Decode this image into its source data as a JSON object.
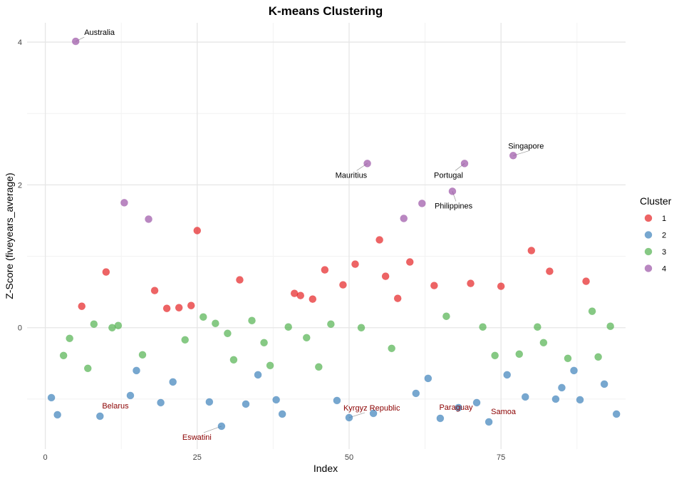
{
  "chart_data": {
    "type": "scatter",
    "title": "K-means Clustering",
    "xlabel": "Index",
    "ylabel": "Z-Score (fiveyears_average)",
    "xlim": [
      -3,
      95.5
    ],
    "ylim": [
      -1.7,
      4.27
    ],
    "x_ticks": [
      0,
      25,
      50,
      75
    ],
    "y_ticks": [
      0,
      2,
      4
    ],
    "grid": true,
    "legend_title": "Cluster",
    "legend_position": "right",
    "colors": {
      "1": "#E41A1C",
      "2": "#377EB8",
      "3": "#4DAF4A",
      "4": "#984EA3"
    },
    "series": [
      {
        "name": "1",
        "points": [
          [
            6,
            0.3
          ],
          [
            10,
            0.78
          ],
          [
            18,
            0.52
          ],
          [
            20,
            0.27
          ],
          [
            22,
            0.28
          ],
          [
            24,
            0.31
          ],
          [
            25,
            1.36
          ],
          [
            32,
            0.67
          ],
          [
            41,
            0.48
          ],
          [
            42,
            0.45
          ],
          [
            44,
            0.4
          ],
          [
            46,
            0.81
          ],
          [
            49,
            0.6
          ],
          [
            51,
            0.89
          ],
          [
            55,
            1.23
          ],
          [
            56,
            0.72
          ],
          [
            58,
            0.41
          ],
          [
            60,
            0.92
          ],
          [
            64,
            0.59
          ],
          [
            70,
            0.62
          ],
          [
            75,
            0.58
          ],
          [
            80,
            1.08
          ],
          [
            83,
            0.79
          ],
          [
            89,
            0.65
          ]
        ]
      },
      {
        "name": "2",
        "points": [
          [
            1,
            -0.98
          ],
          [
            2,
            -1.22
          ],
          [
            9,
            -1.24
          ],
          [
            14,
            -0.95
          ],
          [
            15,
            -0.6
          ],
          [
            19,
            -1.05
          ],
          [
            21,
            -0.76
          ],
          [
            27,
            -1.04
          ],
          [
            29,
            -1.38
          ],
          [
            33,
            -1.07
          ],
          [
            35,
            -0.66
          ],
          [
            38,
            -1.01
          ],
          [
            39,
            -1.21
          ],
          [
            48,
            -1.02
          ],
          [
            50,
            -1.26
          ],
          [
            54,
            -1.2
          ],
          [
            61,
            -0.92
          ],
          [
            63,
            -0.71
          ],
          [
            65,
            -1.27
          ],
          [
            68,
            -1.12
          ],
          [
            71,
            -1.05
          ],
          [
            73,
            -1.32
          ],
          [
            76,
            -0.66
          ],
          [
            79,
            -0.97
          ],
          [
            84,
            -1.0
          ],
          [
            85,
            -0.84
          ],
          [
            87,
            -0.6
          ],
          [
            88,
            -1.01
          ],
          [
            92,
            -0.79
          ],
          [
            94,
            -1.21
          ]
        ]
      },
      {
        "name": "3",
        "points": [
          [
            3,
            -0.39
          ],
          [
            4,
            -0.15
          ],
          [
            7,
            -0.57
          ],
          [
            8,
            0.05
          ],
          [
            11,
            0.0
          ],
          [
            12,
            0.03
          ],
          [
            16,
            -0.38
          ],
          [
            23,
            -0.17
          ],
          [
            26,
            0.15
          ],
          [
            28,
            0.06
          ],
          [
            30,
            -0.08
          ],
          [
            31,
            -0.45
          ],
          [
            34,
            0.1
          ],
          [
            36,
            -0.21
          ],
          [
            37,
            -0.53
          ],
          [
            40,
            0.01
          ],
          [
            43,
            -0.14
          ],
          [
            45,
            -0.55
          ],
          [
            47,
            0.05
          ],
          [
            52,
            -0.0
          ],
          [
            57,
            -0.29
          ],
          [
            66,
            0.16
          ],
          [
            72,
            0.01
          ],
          [
            74,
            -0.39
          ],
          [
            78,
            -0.37
          ],
          [
            81,
            0.01
          ],
          [
            82,
            -0.21
          ],
          [
            86,
            -0.43
          ],
          [
            90,
            0.23
          ],
          [
            91,
            -0.41
          ],
          [
            93,
            0.02
          ]
        ]
      },
      {
        "name": "4",
        "points": [
          [
            5,
            4.01
          ],
          [
            13,
            1.75
          ],
          [
            17,
            1.52
          ],
          [
            53,
            2.3
          ],
          [
            59,
            1.53
          ],
          [
            62,
            1.74
          ],
          [
            67,
            1.91
          ],
          [
            69,
            2.3
          ],
          [
            77,
            2.41
          ]
        ]
      }
    ],
    "annotations": [
      {
        "text": "Australia",
        "x": 5,
        "y": 4.01,
        "color": "#000000"
      },
      {
        "text": "Singapore",
        "x": 77,
        "y": 2.41,
        "color": "#000000"
      },
      {
        "text": "Mauritius",
        "x": 53,
        "y": 2.3,
        "color": "#000000"
      },
      {
        "text": "Portugal",
        "x": 69,
        "y": 2.3,
        "color": "#000000"
      },
      {
        "text": "Philippines",
        "x": 67,
        "y": 1.91,
        "color": "#000000"
      },
      {
        "text": "Belarus",
        "x": 9,
        "y": -1.24,
        "color": "#8B0000"
      },
      {
        "text": "Eswatini",
        "x": 29,
        "y": -1.38,
        "color": "#8B0000"
      },
      {
        "text": "Kyrgyz Republic",
        "x": 50,
        "y": -1.26,
        "color": "#8B0000"
      },
      {
        "text": "Paraguay",
        "x": 68,
        "y": -1.12,
        "color": "#8B0000"
      },
      {
        "text": "Samoa",
        "x": 73,
        "y": -1.32,
        "color": "#8B0000"
      }
    ]
  }
}
